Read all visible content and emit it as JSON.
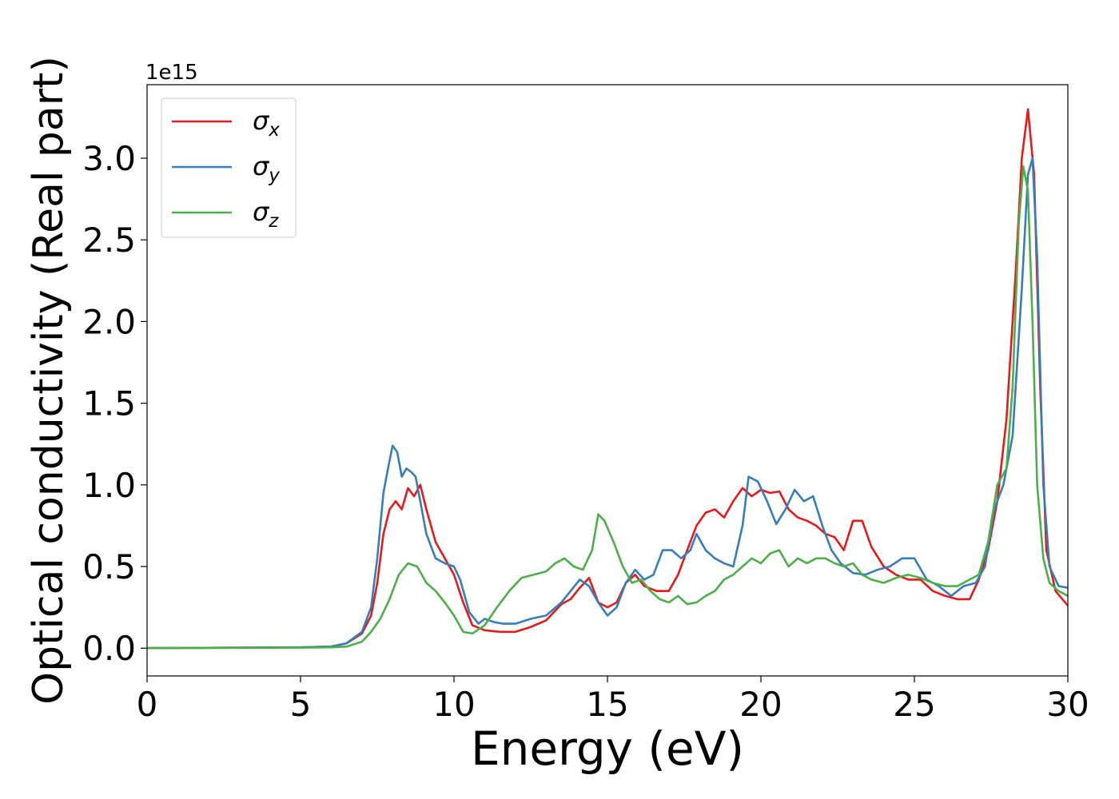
{
  "chart_data": {
    "type": "line",
    "xlabel": "Energy (eV)",
    "ylabel": "Optical conductivity (Real part)",
    "y_scale_label": "1e15",
    "xlim": [
      0,
      30
    ],
    "ylim": [
      -0.17,
      3.45
    ],
    "x_ticks": [
      {
        "value": 0,
        "label": "0"
      },
      {
        "value": 5,
        "label": "5"
      },
      {
        "value": 10,
        "label": "10"
      },
      {
        "value": 15,
        "label": "15"
      },
      {
        "value": 20,
        "label": "20"
      },
      {
        "value": 25,
        "label": "25"
      },
      {
        "value": 30,
        "label": "30"
      }
    ],
    "y_ticks": [
      {
        "value": 0.0,
        "label": "0.0"
      },
      {
        "value": 0.5,
        "label": "0.5"
      },
      {
        "value": 1.0,
        "label": "1.0"
      },
      {
        "value": 1.5,
        "label": "1.5"
      },
      {
        "value": 2.0,
        "label": "2.0"
      },
      {
        "value": 2.5,
        "label": "2.5"
      },
      {
        "value": 3.0,
        "label": "3.0"
      }
    ],
    "grid": false,
    "legend_position": "upper-left",
    "series": [
      {
        "name": "σx",
        "symbol": "σ",
        "subscript": "x",
        "color": "#e41a1c",
        "x": [
          0,
          5,
          6,
          6.5,
          7,
          7.3,
          7.5,
          7.7,
          7.9,
          8.1,
          8.3,
          8.5,
          8.7,
          8.9,
          9.1,
          9.4,
          9.7,
          10,
          10.3,
          10.6,
          11,
          11.5,
          12,
          12.5,
          13,
          13.5,
          13.8,
          14.1,
          14.4,
          14.7,
          15,
          15.3,
          15.6,
          15.9,
          16.2,
          16.6,
          17,
          17.3,
          17.6,
          17.9,
          18.2,
          18.5,
          18.8,
          19.1,
          19.4,
          19.7,
          20,
          20.3,
          20.6,
          20.9,
          21.2,
          21.5,
          21.8,
          22.1,
          22.4,
          22.7,
          23,
          23.3,
          23.6,
          24,
          24.4,
          24.8,
          25.2,
          25.6,
          26,
          26.4,
          26.8,
          27.1,
          27.4,
          27.7,
          28,
          28.3,
          28.5,
          28.7,
          28.9,
          29.1,
          29.3,
          29.6,
          30
        ],
        "y": [
          0,
          0.005,
          0.01,
          0.03,
          0.09,
          0.2,
          0.4,
          0.7,
          0.85,
          0.9,
          0.85,
          0.98,
          0.93,
          1.0,
          0.85,
          0.65,
          0.55,
          0.45,
          0.28,
          0.14,
          0.11,
          0.1,
          0.1,
          0.13,
          0.17,
          0.27,
          0.3,
          0.37,
          0.43,
          0.28,
          0.25,
          0.28,
          0.4,
          0.45,
          0.38,
          0.35,
          0.35,
          0.45,
          0.6,
          0.75,
          0.83,
          0.85,
          0.8,
          0.9,
          0.98,
          0.93,
          0.97,
          0.95,
          0.96,
          0.85,
          0.8,
          0.78,
          0.75,
          0.7,
          0.68,
          0.6,
          0.78,
          0.78,
          0.62,
          0.5,
          0.45,
          0.42,
          0.42,
          0.35,
          0.32,
          0.3,
          0.3,
          0.42,
          0.6,
          0.9,
          1.4,
          2.3,
          3.0,
          3.3,
          2.9,
          1.6,
          0.6,
          0.35,
          0.26
        ]
      },
      {
        "name": "σy",
        "symbol": "σ",
        "subscript": "y",
        "color": "#377eb8",
        "x": [
          0,
          5,
          6,
          6.5,
          7,
          7.3,
          7.5,
          7.7,
          7.85,
          8,
          8.15,
          8.3,
          8.45,
          8.6,
          8.75,
          8.9,
          9.1,
          9.4,
          9.7,
          10,
          10.2,
          10.5,
          10.8,
          11,
          11.3,
          11.6,
          12,
          12.5,
          13,
          13.5,
          13.8,
          14.1,
          14.4,
          14.7,
          15,
          15.3,
          15.6,
          15.9,
          16.2,
          16.5,
          16.8,
          17.1,
          17.4,
          17.7,
          17.9,
          18.2,
          18.5,
          18.8,
          19.1,
          19.4,
          19.6,
          19.9,
          20.2,
          20.5,
          20.8,
          21.1,
          21.4,
          21.7,
          22,
          22.3,
          22.6,
          23,
          23.4,
          23.8,
          24.2,
          24.6,
          25,
          25.4,
          25.8,
          26.2,
          26.6,
          27,
          27.3,
          27.6,
          27.9,
          28.2,
          28.5,
          28.7,
          28.85,
          29,
          29.2,
          29.4,
          29.7,
          30
        ],
        "y": [
          0,
          0.005,
          0.01,
          0.03,
          0.1,
          0.25,
          0.55,
          0.95,
          1.1,
          1.24,
          1.2,
          1.05,
          1.1,
          1.08,
          1.05,
          0.9,
          0.7,
          0.55,
          0.52,
          0.5,
          0.42,
          0.22,
          0.15,
          0.18,
          0.16,
          0.15,
          0.15,
          0.18,
          0.2,
          0.28,
          0.35,
          0.42,
          0.38,
          0.28,
          0.2,
          0.25,
          0.4,
          0.48,
          0.42,
          0.45,
          0.6,
          0.6,
          0.55,
          0.6,
          0.7,
          0.6,
          0.55,
          0.52,
          0.5,
          0.75,
          1.05,
          1.02,
          0.9,
          0.76,
          0.85,
          0.97,
          0.9,
          0.93,
          0.75,
          0.6,
          0.52,
          0.46,
          0.45,
          0.48,
          0.5,
          0.55,
          0.55,
          0.42,
          0.38,
          0.32,
          0.38,
          0.4,
          0.5,
          0.85,
          1.0,
          1.3,
          2.2,
          2.9,
          3.0,
          2.4,
          1.0,
          0.5,
          0.38,
          0.37
        ]
      },
      {
        "name": "σz",
        "symbol": "σ",
        "subscript": "z",
        "color": "#4daf4a",
        "x": [
          0,
          5,
          6,
          6.5,
          7,
          7.3,
          7.6,
          7.9,
          8.2,
          8.5,
          8.8,
          9.1,
          9.4,
          9.7,
          10,
          10.3,
          10.6,
          11,
          11.4,
          11.8,
          12.2,
          12.6,
          13,
          13.3,
          13.6,
          13.9,
          14.2,
          14.5,
          14.7,
          14.9,
          15.2,
          15.5,
          15.8,
          16.1,
          16.4,
          16.7,
          17,
          17.3,
          17.6,
          17.9,
          18.2,
          18.5,
          18.8,
          19.1,
          19.4,
          19.7,
          20,
          20.3,
          20.6,
          20.9,
          21.2,
          21.5,
          21.8,
          22.1,
          22.4,
          22.7,
          23,
          23.3,
          23.6,
          24,
          24.4,
          24.8,
          25.2,
          25.6,
          26,
          26.4,
          26.8,
          27.1,
          27.4,
          27.7,
          28,
          28.2,
          28.4,
          28.55,
          28.7,
          28.85,
          29,
          29.2,
          29.4,
          29.7,
          30
        ],
        "y": [
          0,
          0.003,
          0.005,
          0.01,
          0.04,
          0.1,
          0.18,
          0.3,
          0.45,
          0.52,
          0.5,
          0.4,
          0.35,
          0.28,
          0.2,
          0.1,
          0.09,
          0.14,
          0.25,
          0.35,
          0.43,
          0.45,
          0.47,
          0.52,
          0.55,
          0.5,
          0.48,
          0.6,
          0.82,
          0.78,
          0.65,
          0.5,
          0.4,
          0.42,
          0.35,
          0.3,
          0.28,
          0.32,
          0.27,
          0.28,
          0.32,
          0.35,
          0.42,
          0.45,
          0.5,
          0.55,
          0.52,
          0.58,
          0.6,
          0.5,
          0.55,
          0.52,
          0.55,
          0.55,
          0.52,
          0.5,
          0.52,
          0.45,
          0.42,
          0.4,
          0.43,
          0.45,
          0.43,
          0.4,
          0.38,
          0.38,
          0.42,
          0.45,
          0.65,
          1.0,
          1.1,
          1.6,
          2.6,
          2.95,
          2.8,
          2.0,
          1.0,
          0.55,
          0.4,
          0.35,
          0.32
        ]
      }
    ]
  }
}
